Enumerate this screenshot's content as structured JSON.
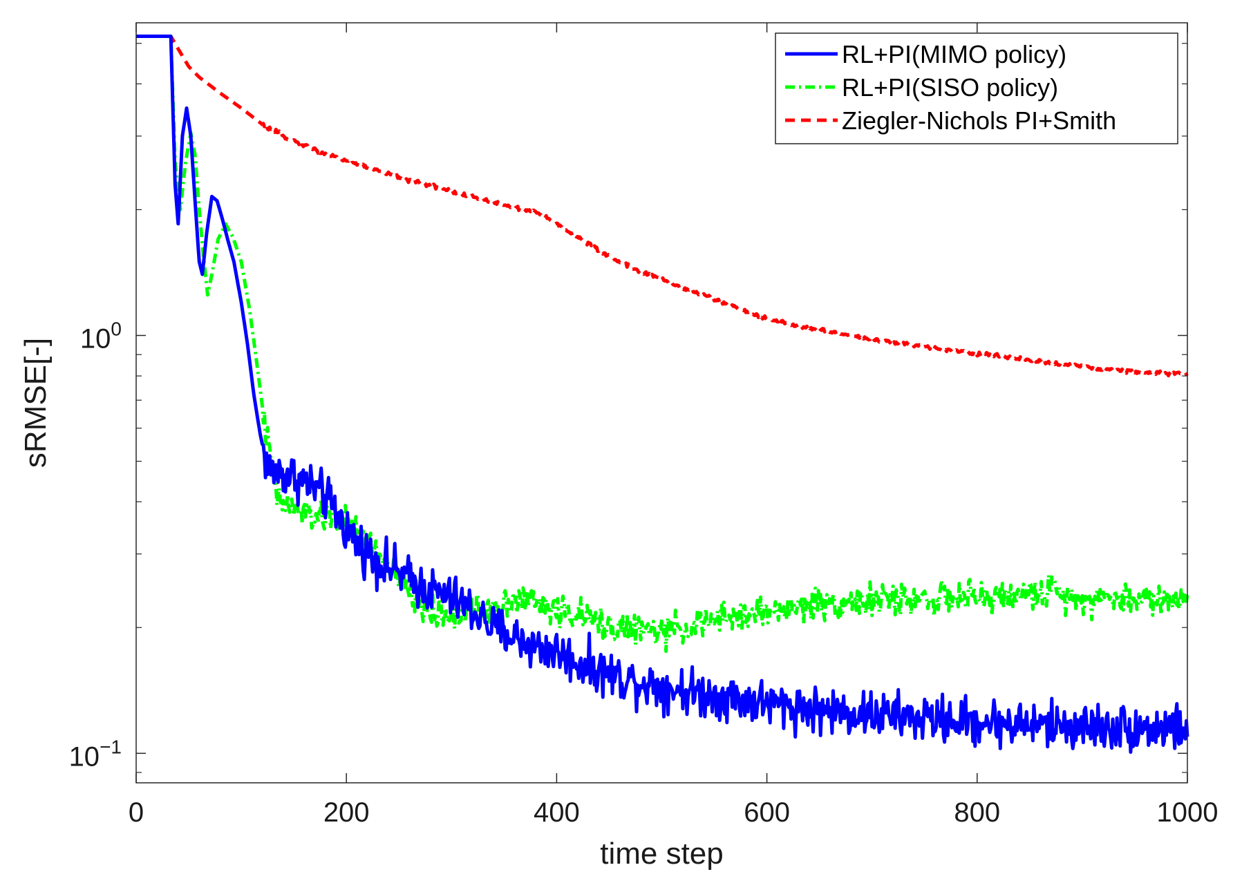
{
  "chart_data": {
    "type": "line",
    "title": "",
    "xlabel": "time step",
    "ylabel": "sRMSE[-]",
    "xlim": [
      0,
      1000
    ],
    "ylim": [
      0.085,
      5.6
    ],
    "yscale": "log",
    "x_ticks": [
      0,
      200,
      400,
      600,
      800,
      1000
    ],
    "x_tick_labels": [
      "0",
      "200",
      "400",
      "600",
      "800",
      "1000"
    ],
    "y_ticks": [
      {
        "value": 1,
        "base": "10",
        "exponent": "0"
      },
      {
        "value": 0.1,
        "base": "10",
        "exponent": "−1"
      }
    ],
    "grid": false,
    "legend_position": "top-right",
    "series": [
      {
        "name": "RL+PI(MIMO policy)",
        "color": "#0000ff",
        "line_style": "solid",
        "noise": 0.09,
        "points": [
          [
            0,
            5.2
          ],
          [
            30,
            5.2
          ],
          [
            33,
            5.2
          ],
          [
            37,
            2.3
          ],
          [
            40,
            1.85
          ],
          [
            44,
            3.0
          ],
          [
            48,
            3.5
          ],
          [
            52,
            3.0
          ],
          [
            56,
            2.1
          ],
          [
            60,
            1.5
          ],
          [
            63,
            1.4
          ],
          [
            67,
            1.75
          ],
          [
            72,
            2.15
          ],
          [
            77,
            2.1
          ],
          [
            82,
            1.9
          ],
          [
            87,
            1.7
          ],
          [
            93,
            1.5
          ],
          [
            100,
            1.2
          ],
          [
            106,
            0.95
          ],
          [
            112,
            0.72
          ],
          [
            118,
            0.58
          ],
          [
            125,
            0.48
          ],
          [
            135,
            0.47
          ],
          [
            150,
            0.46
          ],
          [
            165,
            0.44
          ],
          [
            180,
            0.41
          ],
          [
            195,
            0.36
          ],
          [
            210,
            0.32
          ],
          [
            225,
            0.295
          ],
          [
            240,
            0.28
          ],
          [
            260,
            0.26
          ],
          [
            280,
            0.245
          ],
          [
            300,
            0.235
          ],
          [
            320,
            0.22
          ],
          [
            340,
            0.2
          ],
          [
            360,
            0.19
          ],
          [
            380,
            0.18
          ],
          [
            400,
            0.175
          ],
          [
            420,
            0.165
          ],
          [
            440,
            0.158
          ],
          [
            460,
            0.152
          ],
          [
            480,
            0.148
          ],
          [
            500,
            0.145
          ],
          [
            530,
            0.14
          ],
          [
            560,
            0.137
          ],
          [
            600,
            0.132
          ],
          [
            650,
            0.127
          ],
          [
            700,
            0.124
          ],
          [
            750,
            0.121
          ],
          [
            800,
            0.119
          ],
          [
            850,
            0.117
          ],
          [
            900,
            0.116
          ],
          [
            950,
            0.115
          ],
          [
            1000,
            0.115
          ]
        ]
      },
      {
        "name": "RL+PI(SISO policy)",
        "color": "#00ff00",
        "line_style": "dash-dot",
        "noise": 0.06,
        "points": [
          [
            0,
            5.2
          ],
          [
            30,
            5.2
          ],
          [
            33,
            5.2
          ],
          [
            37,
            2.6
          ],
          [
            42,
            2.0
          ],
          [
            47,
            2.6
          ],
          [
            52,
            3.05
          ],
          [
            56,
            2.7
          ],
          [
            60,
            2.0
          ],
          [
            64,
            1.55
          ],
          [
            68,
            1.25
          ],
          [
            72,
            1.4
          ],
          [
            78,
            1.7
          ],
          [
            85,
            1.85
          ],
          [
            92,
            1.72
          ],
          [
            100,
            1.5
          ],
          [
            108,
            1.15
          ],
          [
            115,
            0.85
          ],
          [
            122,
            0.62
          ],
          [
            130,
            0.46
          ],
          [
            135,
            0.4
          ],
          [
            145,
            0.39
          ],
          [
            160,
            0.375
          ],
          [
            175,
            0.365
          ],
          [
            190,
            0.37
          ],
          [
            205,
            0.35
          ],
          [
            220,
            0.32
          ],
          [
            240,
            0.28
          ],
          [
            255,
            0.25
          ],
          [
            270,
            0.225
          ],
          [
            285,
            0.215
          ],
          [
            300,
            0.215
          ],
          [
            320,
            0.22
          ],
          [
            340,
            0.225
          ],
          [
            360,
            0.235
          ],
          [
            380,
            0.23
          ],
          [
            400,
            0.22
          ],
          [
            420,
            0.215
          ],
          [
            440,
            0.205
          ],
          [
            460,
            0.2
          ],
          [
            480,
            0.197
          ],
          [
            500,
            0.195
          ],
          [
            520,
            0.2
          ],
          [
            540,
            0.205
          ],
          [
            560,
            0.21
          ],
          [
            580,
            0.215
          ],
          [
            600,
            0.218
          ],
          [
            620,
            0.222
          ],
          [
            650,
            0.228
          ],
          [
            700,
            0.232
          ],
          [
            750,
            0.235
          ],
          [
            800,
            0.235
          ],
          [
            850,
            0.24
          ],
          [
            870,
            0.245
          ],
          [
            900,
            0.235
          ],
          [
            950,
            0.235
          ],
          [
            1000,
            0.232
          ]
        ]
      },
      {
        "name": "Ziegler-Nichols PI+Smith",
        "color": "#ff0000",
        "line_style": "dashed",
        "noise": 0.008,
        "points": [
          [
            0,
            5.2
          ],
          [
            30,
            5.2
          ],
          [
            33,
            5.2
          ],
          [
            40,
            4.85
          ],
          [
            50,
            4.4
          ],
          [
            60,
            4.15
          ],
          [
            80,
            3.8
          ],
          [
            100,
            3.5
          ],
          [
            120,
            3.2
          ],
          [
            140,
            3.0
          ],
          [
            160,
            2.85
          ],
          [
            180,
            2.72
          ],
          [
            200,
            2.62
          ],
          [
            230,
            2.48
          ],
          [
            260,
            2.35
          ],
          [
            290,
            2.25
          ],
          [
            320,
            2.15
          ],
          [
            350,
            2.05
          ],
          [
            380,
            1.97
          ],
          [
            400,
            1.85
          ],
          [
            420,
            1.72
          ],
          [
            440,
            1.6
          ],
          [
            460,
            1.5
          ],
          [
            480,
            1.42
          ],
          [
            500,
            1.36
          ],
          [
            520,
            1.3
          ],
          [
            540,
            1.25
          ],
          [
            560,
            1.19
          ],
          [
            580,
            1.14
          ],
          [
            600,
            1.1
          ],
          [
            630,
            1.05
          ],
          [
            660,
            1.02
          ],
          [
            690,
            0.99
          ],
          [
            720,
            0.96
          ],
          [
            750,
            0.94
          ],
          [
            780,
            0.92
          ],
          [
            810,
            0.9
          ],
          [
            840,
            0.88
          ],
          [
            870,
            0.86
          ],
          [
            900,
            0.84
          ],
          [
            930,
            0.825
          ],
          [
            960,
            0.815
          ],
          [
            1000,
            0.81
          ]
        ]
      }
    ]
  }
}
